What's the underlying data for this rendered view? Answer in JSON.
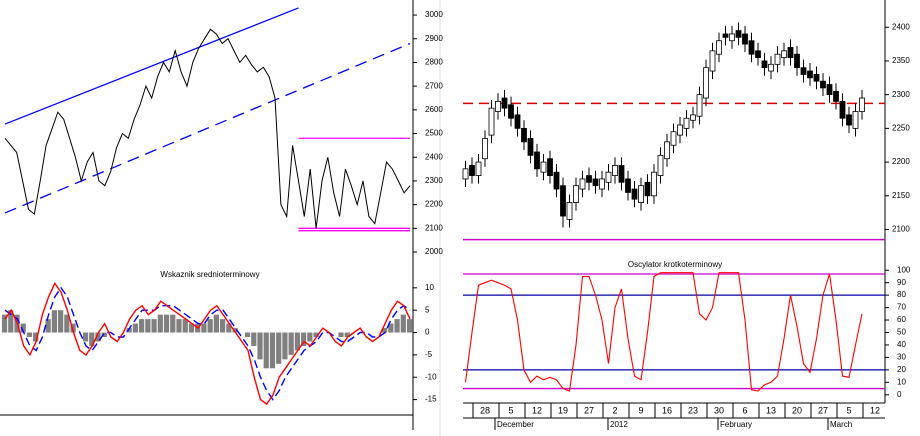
{
  "chart_data": [
    {
      "type": "line",
      "values": [
        2480,
        2450,
        2420,
        2300,
        2180,
        2160,
        2300,
        2450,
        2520,
        2590,
        2560,
        2480,
        2400,
        2300,
        2380,
        2420,
        2300,
        2280,
        2340,
        2440,
        2500,
        2480,
        2560,
        2620,
        2700,
        2650,
        2740,
        2800,
        2760,
        2850,
        2760,
        2700,
        2800,
        2860,
        2900,
        2940,
        2920,
        2880,
        2900,
        2850,
        2800,
        2830,
        2790,
        2760,
        2780,
        2740,
        2650,
        2200,
        2150,
        2450,
        2300,
        2150,
        2350,
        2100,
        2300,
        2400,
        2250,
        2150,
        2350,
        2280,
        2200,
        2300,
        2150,
        2120,
        2250,
        2380,
        2350,
        2300,
        2250,
        2280
      ],
      "color": "#000000",
      "ylim": [
        1990,
        3050
      ],
      "yticks": [
        2000,
        2100,
        2200,
        2300,
        2400,
        2500,
        2600,
        2700,
        2800,
        2900,
        3000
      ],
      "lines": [
        {
          "color": "#0000ff",
          "dash": false,
          "x": [
            0,
            50
          ],
          "y": [
            2540,
            3030
          ]
        },
        {
          "color": "#0000ff",
          "dash": true,
          "x": [
            0,
            69
          ],
          "y": [
            2165,
            2880
          ]
        },
        {
          "color": "#ff00ff",
          "dash": false,
          "x": [
            50,
            69
          ],
          "y": [
            2480,
            2480
          ]
        },
        {
          "color": "#ff00ff",
          "dash": false,
          "x": [
            50,
            69
          ],
          "y": [
            2100,
            2100
          ]
        },
        {
          "color": "#ff00ff",
          "dash": false,
          "x": [
            50,
            69
          ],
          "y": [
            2090,
            2090
          ]
        }
      ]
    },
    {
      "type": "macd",
      "title": "Wskaznik srednioterminowy",
      "series": [
        {
          "kind": "histogram",
          "color": "#808080",
          "values": [
            4,
            5,
            4,
            2,
            -1,
            -2,
            0,
            3,
            5,
            5,
            4,
            2,
            0,
            -2,
            -3,
            -2,
            -1,
            0,
            0,
            0,
            1,
            2,
            3,
            3,
            3,
            4,
            4,
            4,
            3,
            3,
            2,
            2,
            2,
            3,
            4,
            3,
            2,
            1,
            0,
            -1,
            -3,
            -6,
            -8,
            -8,
            -7,
            -6,
            -5,
            -4,
            -3,
            -2,
            -1,
            0,
            0,
            0,
            -1,
            -1,
            0,
            0,
            0,
            0,
            0,
            1,
            2,
            3,
            4,
            3
          ]
        },
        {
          "kind": "line",
          "dash": true,
          "color": "#0000ff",
          "values": [
            5,
            4,
            3,
            0,
            -3,
            -4,
            -1,
            4,
            8,
            10,
            8,
            4,
            0,
            -3,
            -4,
            -2,
            0,
            0,
            -1,
            -1,
            1,
            3,
            5,
            5,
            5,
            6,
            6,
            6,
            5,
            4,
            3,
            2,
            2,
            4,
            5,
            5,
            3,
            1,
            -1,
            -3,
            -6,
            -10,
            -13,
            -15,
            -13,
            -10,
            -8,
            -6,
            -4,
            -3,
            -2,
            0,
            0,
            -1,
            -2,
            -2,
            -1,
            0,
            0,
            -1,
            -1,
            0,
            3,
            5,
            6,
            5
          ]
        },
        {
          "kind": "line",
          "dash": false,
          "color": "#ff0000",
          "values": [
            3,
            5,
            2,
            -3,
            -5,
            -2,
            4,
            8,
            11,
            9,
            5,
            0,
            -4,
            -5,
            -3,
            0,
            2,
            -1,
            -2,
            0,
            3,
            5,
            6,
            4,
            5,
            7,
            6,
            5,
            4,
            3,
            2,
            1,
            3,
            5,
            6,
            4,
            2,
            0,
            -2,
            -4,
            -10,
            -15,
            -16,
            -14,
            -10,
            -8,
            -6,
            -4,
            -2,
            -3,
            -1,
            1,
            0,
            -2,
            -3,
            -1,
            0,
            1,
            -1,
            -2,
            -1,
            2,
            5,
            7,
            6,
            3
          ]
        }
      ],
      "ylim": [
        -18,
        16
      ],
      "yticks": [
        10,
        5,
        0,
        -5,
        -10,
        -15
      ]
    },
    {
      "type": "candlestick",
      "open": [
        2175,
        2195,
        2180,
        2205,
        2240,
        2275,
        2295,
        2285,
        2270,
        2250,
        2235,
        2215,
        2185,
        2205,
        2185,
        2165,
        2115,
        2140,
        2160,
        2180,
        2175,
        2160,
        2170,
        2180,
        2195,
        2175,
        2160,
        2140,
        2170,
        2150,
        2180,
        2205,
        2225,
        2240,
        2250,
        2262,
        2268,
        2295,
        2335,
        2360,
        2390,
        2380,
        2395,
        2390,
        2380,
        2365,
        2350,
        2335,
        2345,
        2355,
        2370,
        2360,
        2340,
        2335,
        2330,
        2320,
        2315,
        2305,
        2290,
        2270,
        2250,
        2275,
        null,
        null
      ],
      "high": [
        2202,
        2207,
        2212,
        2247,
        2292,
        2302,
        2307,
        2297,
        2282,
        2262,
        2247,
        2227,
        2212,
        2217,
        2197,
        2177,
        2152,
        2177,
        2187,
        2192,
        2187,
        2187,
        2197,
        2207,
        2207,
        2187,
        2172,
        2177,
        2182,
        2197,
        2222,
        2242,
        2257,
        2267,
        2277,
        2282,
        2312,
        2352,
        2377,
        2392,
        2402,
        2402,
        2407,
        2402,
        2392,
        2377,
        2362,
        2357,
        2372,
        2377,
        2382,
        2372,
        2352,
        2347,
        2342,
        2332,
        2327,
        2317,
        2302,
        2282,
        2287,
        2307,
        null,
        null
      ],
      "low": [
        2163,
        2168,
        2168,
        2193,
        2228,
        2263,
        2268,
        2253,
        2238,
        2218,
        2198,
        2178,
        2173,
        2168,
        2148,
        2103,
        2103,
        2128,
        2148,
        2158,
        2153,
        2148,
        2158,
        2168,
        2158,
        2143,
        2133,
        2128,
        2138,
        2138,
        2168,
        2193,
        2213,
        2228,
        2238,
        2250,
        2256,
        2283,
        2323,
        2348,
        2373,
        2368,
        2373,
        2363,
        2348,
        2343,
        2328,
        2323,
        2333,
        2343,
        2343,
        2328,
        2318,
        2313,
        2308,
        2298,
        2288,
        2278,
        2253,
        2243,
        2238,
        2263,
        null,
        null
      ],
      "close": [
        2190,
        2180,
        2200,
        2235,
        2280,
        2290,
        2280,
        2265,
        2250,
        2230,
        2210,
        2190,
        2200,
        2180,
        2160,
        2120,
        2140,
        2165,
        2175,
        2170,
        2165,
        2175,
        2185,
        2195,
        2170,
        2155,
        2145,
        2165,
        2150,
        2185,
        2210,
        2230,
        2245,
        2255,
        2265,
        2270,
        2300,
        2340,
        2365,
        2380,
        2385,
        2390,
        2385,
        2375,
        2360,
        2355,
        2340,
        2345,
        2360,
        2365,
        2355,
        2340,
        2330,
        2325,
        2320,
        2310,
        2300,
        2290,
        2265,
        2255,
        2275,
        2295,
        null,
        null
      ],
      "ylim": [
        2080,
        2430
      ],
      "yticks": [
        2100,
        2150,
        2200,
        2250,
        2300,
        2350,
        2400
      ],
      "hlines": [
        {
          "value": 2287,
          "color": "#dd0000",
          "dash": true
        },
        {
          "value": 2085,
          "color": "#cc00cc",
          "dash": false
        }
      ]
    },
    {
      "type": "line",
      "title": "Oscylator krotkoterminowy",
      "categories": [
        null,
        null,
        null,
        "28",
        null,
        null,
        null,
        "5",
        null,
        null,
        null,
        "12",
        null,
        null,
        null,
        "19",
        null,
        null,
        null,
        "27",
        null,
        null,
        null,
        "2",
        null,
        null,
        null,
        "9",
        null,
        null,
        null,
        "16",
        null,
        null,
        null,
        "23",
        null,
        null,
        null,
        "30",
        null,
        null,
        null,
        "6",
        null,
        null,
        null,
        "13",
        null,
        null,
        null,
        "20",
        null,
        null,
        null,
        "27",
        null,
        null,
        null,
        "5",
        null,
        null,
        null,
        "12"
      ],
      "values": [
        10,
        50,
        88,
        90,
        92,
        90,
        88,
        85,
        60,
        20,
        10,
        15,
        12,
        14,
        12,
        5,
        3,
        40,
        95,
        95,
        80,
        60,
        25,
        70,
        85,
        45,
        15,
        12,
        50,
        95,
        98,
        98,
        98,
        98,
        98,
        98,
        65,
        60,
        70,
        98,
        98,
        98,
        98,
        60,
        4,
        3,
        8,
        10,
        15,
        45,
        80,
        55,
        25,
        18,
        45,
        80,
        97,
        60,
        15,
        14,
        40,
        65,
        null,
        null
      ],
      "color": "#ff0000",
      "months": [
        "December",
        "2012",
        "February",
        "March"
      ],
      "ylim": [
        -5,
        105
      ],
      "yticks": [
        0,
        10,
        20,
        30,
        40,
        50,
        60,
        70,
        80,
        90,
        100
      ],
      "hlines": [
        {
          "value": 97,
          "color": "#cc00cc"
        },
        {
          "value": 80,
          "color": "#0000aa"
        },
        {
          "value": 20,
          "color": "#0000aa"
        },
        {
          "value": 5,
          "color": "#cc00cc"
        }
      ]
    }
  ]
}
